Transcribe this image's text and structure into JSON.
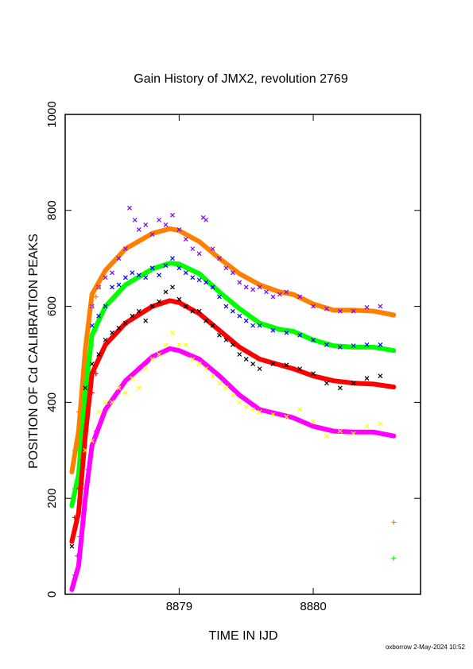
{
  "footer": "oxborrow  2-May-2024 10:52",
  "chart_data": {
    "type": "scatter",
    "title": "Gain History of JMX2, revolution 2769",
    "xlabel": "TIME IN IJD",
    "ylabel": "POSITION OF Cd CALIBRATION PEAKS",
    "xlim": [
      8878.15,
      8880.8
    ],
    "ylim": [
      0,
      1000
    ],
    "x_ticks": [
      8879,
      8880
    ],
    "y_ticks": [
      0,
      200,
      400,
      600,
      800,
      1000
    ],
    "grid": false,
    "series": [
      {
        "marker": "line",
        "color": "#ff8000",
        "points": [
          [
            8878.2,
            255
          ],
          [
            8878.25,
            340
          ],
          [
            8878.3,
            510
          ],
          [
            8878.35,
            625
          ],
          [
            8878.45,
            675
          ],
          [
            8878.6,
            720
          ],
          [
            8878.8,
            752
          ],
          [
            8878.93,
            762
          ],
          [
            8879.0,
            758
          ],
          [
            8879.15,
            735
          ],
          [
            8879.3,
            700
          ],
          [
            8879.45,
            668
          ],
          [
            8879.6,
            645
          ],
          [
            8879.75,
            630
          ],
          [
            8879.85,
            625
          ],
          [
            8880.0,
            605
          ],
          [
            8880.15,
            592
          ],
          [
            8880.3,
            592
          ],
          [
            8880.45,
            590
          ],
          [
            8880.6,
            582
          ]
        ]
      },
      {
        "marker": "line",
        "color": "#00ff00",
        "points": [
          [
            8878.2,
            185
          ],
          [
            8878.25,
            250
          ],
          [
            8878.3,
            420
          ],
          [
            8878.35,
            540
          ],
          [
            8878.45,
            600
          ],
          [
            8878.6,
            645
          ],
          [
            8878.8,
            678
          ],
          [
            8878.93,
            690
          ],
          [
            8879.0,
            688
          ],
          [
            8879.15,
            668
          ],
          [
            8879.3,
            630
          ],
          [
            8879.45,
            595
          ],
          [
            8879.6,
            565
          ],
          [
            8879.75,
            552
          ],
          [
            8879.85,
            548
          ],
          [
            8880.0,
            530
          ],
          [
            8880.15,
            518
          ],
          [
            8880.3,
            515
          ],
          [
            8880.45,
            515
          ],
          [
            8880.6,
            508
          ]
        ]
      },
      {
        "marker": "line",
        "color": "#ff0000",
        "points": [
          [
            8878.2,
            110
          ],
          [
            8878.25,
            170
          ],
          [
            8878.3,
            330
          ],
          [
            8878.35,
            460
          ],
          [
            8878.45,
            520
          ],
          [
            8878.6,
            565
          ],
          [
            8878.8,
            600
          ],
          [
            8878.93,
            612
          ],
          [
            8879.0,
            608
          ],
          [
            8879.15,
            585
          ],
          [
            8879.3,
            550
          ],
          [
            8879.45,
            515
          ],
          [
            8879.6,
            490
          ],
          [
            8879.75,
            478
          ],
          [
            8879.85,
            470
          ],
          [
            8880.0,
            455
          ],
          [
            8880.15,
            445
          ],
          [
            8880.3,
            440
          ],
          [
            8880.45,
            438
          ],
          [
            8880.6,
            432
          ]
        ]
      },
      {
        "marker": "line",
        "color": "#ff00ff",
        "points": [
          [
            8878.2,
            10
          ],
          [
            8878.25,
            60
          ],
          [
            8878.3,
            200
          ],
          [
            8878.35,
            310
          ],
          [
            8878.45,
            385
          ],
          [
            8878.6,
            445
          ],
          [
            8878.8,
            495
          ],
          [
            8878.93,
            512
          ],
          [
            8879.0,
            508
          ],
          [
            8879.15,
            490
          ],
          [
            8879.3,
            455
          ],
          [
            8879.45,
            415
          ],
          [
            8879.6,
            385
          ],
          [
            8879.75,
            375
          ],
          [
            8879.85,
            368
          ],
          [
            8880.0,
            350
          ],
          [
            8880.15,
            340
          ],
          [
            8880.3,
            338
          ],
          [
            8880.45,
            338
          ],
          [
            8880.6,
            330
          ]
        ]
      },
      {
        "marker": "x",
        "color": "#8000ff",
        "points": [
          [
            8878.35,
            600
          ],
          [
            8878.4,
            640
          ],
          [
            8878.45,
            660
          ],
          [
            8878.5,
            670
          ],
          [
            8878.55,
            700
          ],
          [
            8878.6,
            720
          ],
          [
            8878.63,
            805
          ],
          [
            8878.67,
            780
          ],
          [
            8878.7,
            760
          ],
          [
            8878.75,
            770
          ],
          [
            8878.8,
            750
          ],
          [
            8878.85,
            780
          ],
          [
            8878.9,
            770
          ],
          [
            8878.95,
            790
          ],
          [
            8879.0,
            760
          ],
          [
            8879.05,
            740
          ],
          [
            8879.1,
            720
          ],
          [
            8879.15,
            710
          ],
          [
            8879.18,
            785
          ],
          [
            8879.2,
            780
          ],
          [
            8879.25,
            720
          ],
          [
            8879.3,
            700
          ],
          [
            8879.35,
            680
          ],
          [
            8879.4,
            670
          ],
          [
            8879.45,
            650
          ],
          [
            8879.5,
            640
          ],
          [
            8879.55,
            635
          ],
          [
            8879.6,
            640
          ],
          [
            8879.65,
            630
          ],
          [
            8879.7,
            620
          ],
          [
            8879.75,
            625
          ],
          [
            8879.8,
            630
          ],
          [
            8879.9,
            620
          ],
          [
            8880.0,
            600
          ],
          [
            8880.1,
            595
          ],
          [
            8880.2,
            590
          ],
          [
            8880.3,
            590
          ],
          [
            8880.4,
            598
          ],
          [
            8880.5,
            600
          ]
        ]
      },
      {
        "marker": "x",
        "color": "#0000ff",
        "points": [
          [
            8878.35,
            560
          ],
          [
            8878.4,
            580
          ],
          [
            8878.45,
            600
          ],
          [
            8878.5,
            640
          ],
          [
            8878.55,
            645
          ],
          [
            8878.6,
            660
          ],
          [
            8878.65,
            670
          ],
          [
            8878.7,
            665
          ],
          [
            8878.75,
            660
          ],
          [
            8878.8,
            680
          ],
          [
            8878.85,
            665
          ],
          [
            8878.9,
            685
          ],
          [
            8878.95,
            700
          ],
          [
            8879.0,
            680
          ],
          [
            8879.05,
            670
          ],
          [
            8879.1,
            660
          ],
          [
            8879.15,
            655
          ],
          [
            8879.2,
            650
          ],
          [
            8879.25,
            640
          ],
          [
            8879.3,
            620
          ],
          [
            8879.35,
            600
          ],
          [
            8879.4,
            590
          ],
          [
            8879.45,
            580
          ],
          [
            8879.5,
            570
          ],
          [
            8879.55,
            560
          ],
          [
            8879.6,
            560
          ],
          [
            8879.7,
            550
          ],
          [
            8879.8,
            545
          ],
          [
            8879.9,
            540
          ],
          [
            8880.0,
            530
          ],
          [
            8880.1,
            520
          ],
          [
            8880.2,
            515
          ],
          [
            8880.3,
            518
          ],
          [
            8880.4,
            520
          ],
          [
            8880.5,
            520
          ]
        ]
      },
      {
        "marker": "x",
        "color": "#000000",
        "points": [
          [
            8878.2,
            100
          ],
          [
            8878.3,
            430
          ],
          [
            8878.35,
            480
          ],
          [
            8878.4,
            500
          ],
          [
            8878.45,
            530
          ],
          [
            8878.5,
            545
          ],
          [
            8878.55,
            555
          ],
          [
            8878.6,
            565
          ],
          [
            8878.65,
            580
          ],
          [
            8878.7,
            590
          ],
          [
            8878.75,
            570
          ],
          [
            8878.8,
            600
          ],
          [
            8878.85,
            610
          ],
          [
            8878.9,
            630
          ],
          [
            8878.95,
            640
          ],
          [
            8879.0,
            615
          ],
          [
            8879.05,
            600
          ],
          [
            8879.1,
            590
          ],
          [
            8879.15,
            590
          ],
          [
            8879.2,
            570
          ],
          [
            8879.25,
            560
          ],
          [
            8879.3,
            540
          ],
          [
            8879.35,
            530
          ],
          [
            8879.4,
            520
          ],
          [
            8879.45,
            500
          ],
          [
            8879.5,
            490
          ],
          [
            8879.55,
            480
          ],
          [
            8879.6,
            470
          ],
          [
            8879.7,
            480
          ],
          [
            8879.8,
            478
          ],
          [
            8879.9,
            470
          ],
          [
            8880.0,
            460
          ],
          [
            8880.1,
            440
          ],
          [
            8880.2,
            430
          ],
          [
            8880.3,
            440
          ],
          [
            8880.4,
            450
          ],
          [
            8880.5,
            455
          ]
        ]
      },
      {
        "marker": "x",
        "color": "#ffff00",
        "points": [
          [
            8878.3,
            300
          ],
          [
            8878.35,
            320
          ],
          [
            8878.4,
            380
          ],
          [
            8878.45,
            400
          ],
          [
            8878.5,
            400
          ],
          [
            8878.55,
            430
          ],
          [
            8878.6,
            420
          ],
          [
            8878.65,
            450
          ],
          [
            8878.7,
            430
          ],
          [
            8878.75,
            470
          ],
          [
            8878.8,
            490
          ],
          [
            8878.85,
            500
          ],
          [
            8878.9,
            520
          ],
          [
            8878.95,
            545
          ],
          [
            8879.0,
            520
          ],
          [
            8879.05,
            520
          ],
          [
            8879.1,
            490
          ],
          [
            8879.15,
            480
          ],
          [
            8879.2,
            470
          ],
          [
            8879.25,
            455
          ],
          [
            8879.3,
            440
          ],
          [
            8879.35,
            430
          ],
          [
            8879.4,
            415
          ],
          [
            8879.45,
            400
          ],
          [
            8879.5,
            390
          ],
          [
            8879.55,
            385
          ],
          [
            8879.6,
            380
          ],
          [
            8879.7,
            375
          ],
          [
            8879.8,
            370
          ],
          [
            8879.9,
            385
          ],
          [
            8880.0,
            360
          ],
          [
            8880.1,
            330
          ],
          [
            8880.2,
            340
          ],
          [
            8880.3,
            335
          ],
          [
            8880.4,
            350
          ],
          [
            8880.5,
            355
          ]
        ]
      },
      {
        "marker": "+",
        "color": "#ff8000",
        "points": [
          [
            8878.22,
            300
          ],
          [
            8878.25,
            380
          ],
          [
            8878.28,
            450
          ],
          [
            8878.3,
            500
          ],
          [
            8878.32,
            560
          ],
          [
            8878.35,
            600
          ],
          [
            8878.38,
            620
          ],
          [
            8878.4,
            640
          ],
          [
            8880.6,
            150
          ]
        ]
      },
      {
        "marker": "+",
        "color": "#00ff00",
        "points": [
          [
            8878.22,
            220
          ],
          [
            8878.25,
            300
          ],
          [
            8878.28,
            360
          ],
          [
            8878.3,
            420
          ],
          [
            8878.32,
            480
          ],
          [
            8878.35,
            520
          ],
          [
            8878.38,
            550
          ],
          [
            8880.6,
            75
          ]
        ]
      },
      {
        "marker": "+",
        "color": "#ff0000",
        "points": [
          [
            8878.22,
            160
          ],
          [
            8878.25,
            220
          ],
          [
            8878.28,
            280
          ],
          [
            8878.3,
            340
          ],
          [
            8878.32,
            380
          ],
          [
            8878.35,
            420
          ],
          [
            8878.38,
            460
          ]
        ]
      },
      {
        "marker": "+",
        "color": "#ff00ff",
        "points": [
          [
            8878.2,
            10
          ],
          [
            8878.22,
            40
          ],
          [
            8878.24,
            80
          ],
          [
            8878.26,
            120
          ],
          [
            8878.28,
            170
          ],
          [
            8878.3,
            220
          ],
          [
            8878.32,
            260
          ],
          [
            8878.35,
            310
          ],
          [
            8878.38,
            340
          ]
        ]
      }
    ]
  }
}
